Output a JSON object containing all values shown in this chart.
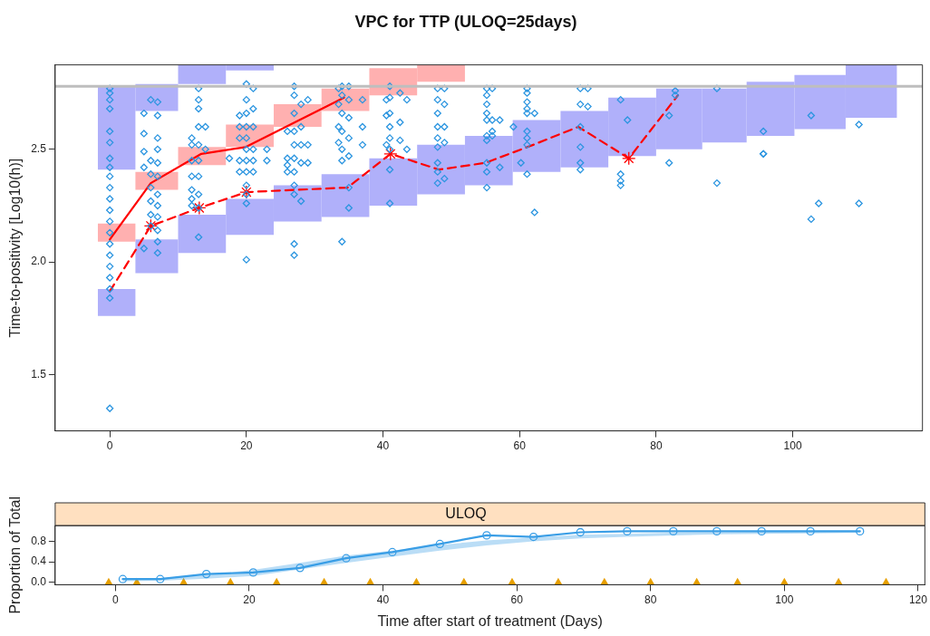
{
  "chart_data": [
    {
      "type": "scatter",
      "title": "VPC for TTP (ULOQ=25days)",
      "ylabel": "Time-to-positivity [Log10(h)]",
      "xlim": [
        -8,
        119
      ],
      "ylim": [
        1.25,
        2.875
      ],
      "xticks": [
        0,
        20,
        40,
        60,
        80,
        100
      ],
      "yticks": [
        {
          "value": 1.5,
          "label": "1.5"
        },
        {
          "value": 2.0,
          "label": "2.0"
        },
        2.5
      ],
      "grid": false,
      "legend": false,
      "series": [
        {
          "type": "bar",
          "color": "#b0b0fa",
          "x": [
            1,
            6.5,
            13.5,
            20.5,
            27.5,
            34.5,
            41.5,
            48.5,
            55.5,
            62.5,
            69.5,
            76.5,
            83.5,
            90,
            96.5,
            104,
            111.5
          ],
          "base": [
            1.76,
            1.95,
            2.04,
            2.12,
            2.18,
            2.2,
            2.25,
            2.3,
            2.34,
            2.4,
            2.42,
            2.47,
            2.5,
            2.53,
            2.56,
            2.59,
            2.64
          ],
          "values": [
            0.12,
            0.15,
            0.17,
            0.16,
            0.16,
            0.19,
            0.21,
            0.22,
            0.22,
            0.23,
            0.25,
            0.26,
            0.27,
            0.24,
            0.24,
            0.24,
            0.235
          ]
        },
        {
          "type": "bar",
          "color": "#b0b0fa",
          "x": [
            1,
            6.5,
            13.5,
            20.5
          ],
          "base": [
            2.41,
            2.67,
            2.79,
            2.85
          ],
          "values": [
            0.37,
            0.12,
            0.085,
            0.025
          ]
        },
        {
          "type": "bar",
          "color": "#ffb0b0",
          "x": [
            1,
            6.5,
            13.5,
            20.5,
            27.5,
            34.5,
            41.5,
            48.5
          ],
          "base": [
            2.09,
            2.32,
            2.43,
            2.51,
            2.6,
            2.67,
            2.74,
            2.8
          ],
          "values": [
            0.08,
            0.08,
            0.08,
            0.1,
            0.1,
            0.1,
            0.12,
            0.075
          ]
        },
        {
          "color": "#2b95e0",
          "marker": "diamond",
          "x": [
            0,
            0,
            0,
            0,
            0,
            0,
            0,
            0,
            0,
            0,
            0,
            0,
            0,
            0,
            0,
            0,
            0,
            0,
            0,
            0,
            0,
            5,
            5,
            5,
            5,
            5,
            6,
            6,
            6,
            6,
            6,
            6,
            6,
            7,
            7,
            7,
            7,
            7,
            7,
            7,
            7,
            7,
            7,
            7,
            7,
            12,
            12,
            12,
            12,
            12,
            12,
            12,
            13,
            13,
            13,
            13,
            13,
            13,
            13,
            13,
            13,
            13,
            14,
            14,
            17.5,
            19,
            19,
            19,
            19,
            19,
            20,
            20,
            20,
            20,
            20,
            20,
            20,
            20,
            20,
            20,
            20,
            20,
            21,
            21,
            21,
            21,
            21,
            21,
            23,
            23,
            26,
            26,
            26,
            26,
            27,
            27,
            27,
            27,
            27,
            27,
            27,
            27,
            27,
            27,
            27,
            28,
            28,
            28,
            28,
            28,
            29,
            29,
            29,
            33.5,
            33.5,
            33.5,
            33.5,
            34,
            34,
            34,
            34,
            34,
            34,
            34,
            35,
            35,
            35,
            35,
            35,
            35,
            35,
            37,
            37,
            37,
            40.5,
            40.5,
            40.5,
            41,
            41,
            41,
            41,
            41,
            41,
            41,
            41,
            42.5,
            42.5,
            42.5,
            43.5,
            43.5,
            48,
            48,
            48,
            48,
            48,
            48,
            48,
            48,
            48,
            49,
            49,
            49,
            49,
            49,
            55.2,
            55.2,
            55.2,
            55.2,
            55.2,
            55.2,
            55.2,
            55.2,
            55.2,
            55.2,
            56,
            56,
            56,
            56,
            57.1,
            57.1,
            59.1,
            60.2,
            61.1,
            61.1,
            61.1,
            61.1,
            61.1,
            61.1,
            61.1,
            61.1,
            61.1,
            62.2,
            62.2,
            68.9,
            68.9,
            68.9,
            68.9,
            68.9,
            68.9,
            70,
            70,
            74.8,
            74.8,
            74.8,
            74.8,
            75.8,
            81.9,
            81.9,
            82.8,
            82.8,
            88.9,
            88.9,
            95.7,
            95.7,
            95.7,
            102.7,
            102.7,
            103.8,
            109.7,
            109.7
          ],
          "values": [
            2.77,
            2.75,
            2.72,
            2.68,
            2.58,
            2.53,
            2.46,
            2.42,
            2.38,
            2.33,
            2.28,
            2.23,
            2.18,
            2.13,
            2.08,
            2.03,
            1.98,
            1.93,
            1.88,
            1.84,
            1.35,
            2.66,
            2.57,
            2.49,
            2.42,
            2.06,
            2.72,
            2.45,
            2.39,
            2.33,
            2.27,
            2.21,
            2.16,
            2.71,
            2.65,
            2.55,
            2.5,
            2.44,
            2.38,
            2.3,
            2.25,
            2.2,
            2.14,
            2.09,
            2.04,
            2.55,
            2.52,
            2.45,
            2.38,
            2.32,
            2.28,
            2.25,
            2.77,
            2.72,
            2.68,
            2.6,
            2.52,
            2.45,
            2.38,
            2.3,
            2.24,
            2.11,
            2.6,
            2.5,
            2.46,
            2.65,
            2.6,
            2.55,
            2.45,
            2.4,
            2.79,
            2.72,
            2.66,
            2.6,
            2.55,
            2.5,
            2.45,
            2.4,
            2.34,
            2.3,
            2.26,
            2.01,
            2.77,
            2.68,
            2.6,
            2.5,
            2.45,
            2.4,
            2.5,
            2.45,
            2.58,
            2.46,
            2.43,
            2.4,
            2.78,
            2.74,
            2.66,
            2.58,
            2.52,
            2.46,
            2.4,
            2.34,
            2.3,
            2.08,
            2.03,
            2.7,
            2.6,
            2.52,
            2.44,
            2.27,
            2.72,
            2.52,
            2.44,
            2.77,
            2.7,
            2.6,
            2.53,
            2.78,
            2.74,
            2.66,
            2.58,
            2.5,
            2.45,
            2.09,
            2.78,
            2.72,
            2.64,
            2.55,
            2.47,
            2.33,
            2.24,
            2.72,
            2.6,
            2.52,
            2.72,
            2.65,
            2.52,
            2.78,
            2.73,
            2.66,
            2.6,
            2.55,
            2.5,
            2.41,
            2.26,
            2.75,
            2.62,
            2.54,
            2.72,
            2.5,
            2.77,
            2.72,
            2.66,
            2.6,
            2.55,
            2.51,
            2.44,
            2.4,
            2.35,
            2.77,
            2.7,
            2.6,
            2.53,
            2.37,
            2.77,
            2.74,
            2.7,
            2.66,
            2.63,
            2.56,
            2.54,
            2.44,
            2.4,
            2.33,
            2.77,
            2.63,
            2.58,
            2.56,
            2.63,
            2.42,
            2.6,
            2.44,
            2.77,
            2.75,
            2.71,
            2.68,
            2.66,
            2.58,
            2.55,
            2.52,
            2.39,
            2.66,
            2.22,
            2.77,
            2.7,
            2.6,
            2.51,
            2.44,
            2.41,
            2.77,
            2.69,
            2.72,
            2.39,
            2.36,
            2.34,
            2.63,
            2.65,
            2.44,
            2.76,
            2.74,
            2.77,
            2.35,
            2.58,
            2.48,
            2.48,
            2.65,
            2.19,
            2.26,
            2.61,
            2.26
          ]
        },
        {
          "type": "line",
          "color": "#ff0000",
          "line_style": "solid",
          "x": [
            0,
            6,
            13.4,
            19.9,
            27.1,
            34.3
          ],
          "values": [
            2.1,
            2.35,
            2.48,
            2.51,
            2.62,
            2.73
          ]
        },
        {
          "type": "line",
          "color": "#ff0000",
          "line_style": "dashed",
          "x": [
            0,
            6,
            13.1,
            20,
            27,
            34.8,
            41.1,
            48.2,
            55,
            62,
            68.6,
            76,
            83.2
          ],
          "values": [
            1.87,
            2.16,
            2.24,
            2.31,
            2.32,
            2.33,
            2.48,
            2.41,
            2.44,
            2.52,
            2.6,
            2.46,
            2.74
          ]
        },
        {
          "type": "scatter",
          "color": "#ff0000",
          "marker": "cross",
          "x": [
            6,
            13.1,
            20,
            41.1,
            76
          ],
          "values": [
            2.16,
            2.24,
            2.31,
            2.48,
            2.46
          ]
        }
      ],
      "ref_lines": [
        {
          "axis": "y",
          "value": 2.78,
          "color": "#bebebe"
        }
      ]
    },
    {
      "type": "line",
      "title": "ULOQ",
      "xlabel": "Time after start of treatment (Days)",
      "ylabel": "Proportion of Total",
      "xlim": [
        -9,
        121
      ],
      "ylim": [
        -0.05,
        1.11
      ],
      "xticks": [
        0,
        20,
        40,
        60,
        80,
        100,
        120
      ],
      "yticks": [
        {
          "value": 0,
          "label": "0.0"
        },
        {
          "value": 0.4,
          "label": "0.4"
        },
        {
          "value": 0.8,
          "label": "0.8"
        }
      ],
      "grid": false,
      "legend": false,
      "series": [
        {
          "color": "#3a9ee6",
          "marker": "circle",
          "line_style": "solid",
          "x": [
            1.1,
            6.7,
            13.6,
            20.6,
            27.6,
            34.5,
            41.4,
            48.5,
            55.5,
            62.5,
            69.5,
            76.5,
            83.4,
            89.9,
            96.6,
            103.9,
            111.3
          ],
          "values": [
            0.06,
            0.06,
            0.16,
            0.19,
            0.28,
            0.47,
            0.59,
            0.75,
            0.92,
            0.89,
            0.98,
            1.0,
            1.0,
            1.0,
            1.0,
            1.0,
            1.0
          ],
          "lower": [
            0.02,
            0.03,
            0.07,
            0.12,
            0.25,
            0.38,
            0.5,
            0.62,
            0.72,
            0.8,
            0.86,
            0.89,
            0.92,
            0.94,
            0.95,
            0.96,
            0.97
          ],
          "upper": [
            0.07,
            0.08,
            0.14,
            0.24,
            0.38,
            0.52,
            0.62,
            0.73,
            0.82,
            0.88,
            0.93,
            0.95,
            0.97,
            0.98,
            0.99,
            0.99,
            1.0
          ]
        },
        {
          "type": "scatter",
          "color": "#e8a000",
          "marker": "triangle",
          "x": [
            -1,
            3.2,
            10.2,
            17.2,
            24.1,
            31.2,
            38.1,
            45,
            52.1,
            59.3,
            66.2,
            73.1,
            80,
            86.9,
            93,
            100,
            108.1,
            115.2
          ],
          "values": [
            0,
            0,
            0,
            0,
            0,
            0,
            0,
            0,
            0,
            0,
            0,
            0,
            0,
            0,
            0,
            0,
            0,
            0
          ]
        }
      ]
    }
  ]
}
